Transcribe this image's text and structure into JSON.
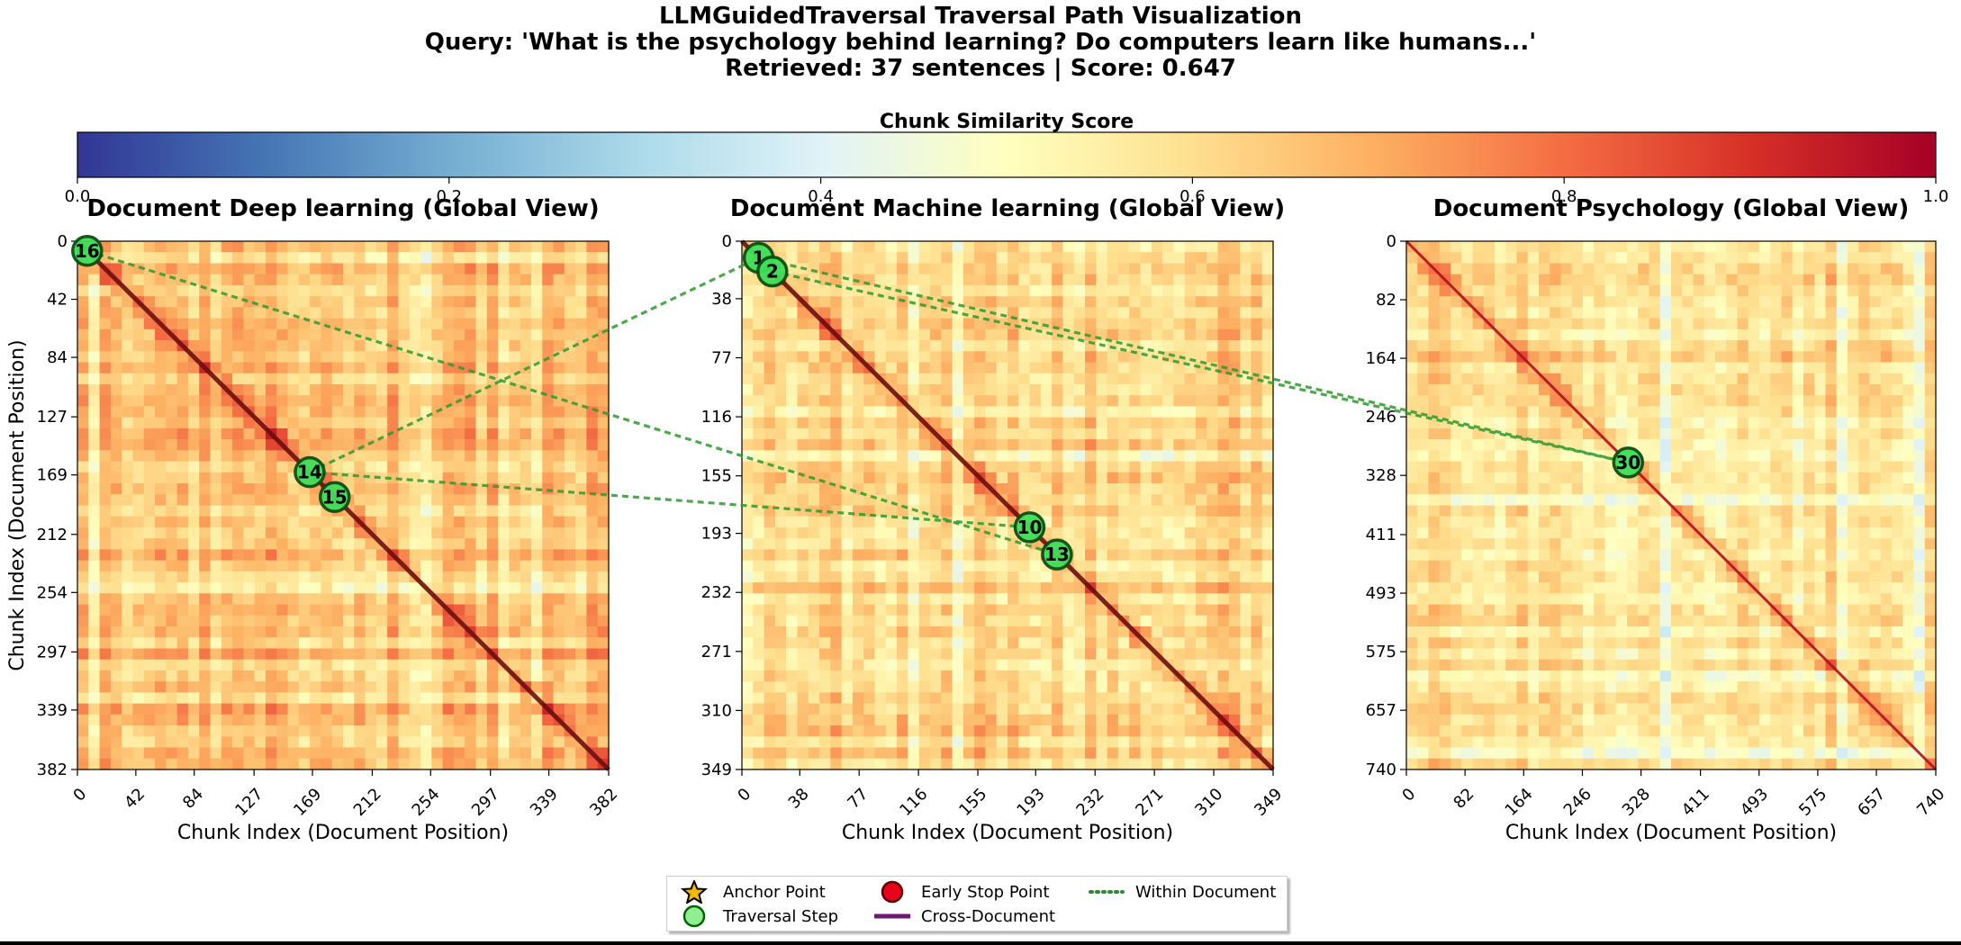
{
  "title": {
    "line1": "LLMGuidedTraversal Traversal Path Visualization",
    "line2": "Query: 'What is the psychology behind learning? Do computers learn like humans...'",
    "line3": "Retrieved: 37 sentences | Score: 0.647"
  },
  "colorbar": {
    "label": "Chunk Similarity Score",
    "colormap": "RdYlBu_r",
    "colors": [
      "#313695",
      "#4575b4",
      "#74add1",
      "#abd9e9",
      "#e0f3f8",
      "#ffffbf",
      "#fee090",
      "#fdae61",
      "#f46d43",
      "#d73027",
      "#a50026"
    ],
    "ticks": [
      "0.0",
      "0.2",
      "0.4",
      "0.6",
      "0.8",
      "1.0"
    ]
  },
  "legend": {
    "items": [
      {
        "label": "Anchor Point",
        "icon": "star-icon",
        "color": "#f5b800"
      },
      {
        "label": "Traversal Step",
        "icon": "circle-icon",
        "color": "#90ee90"
      },
      {
        "label": "Early Stop Point",
        "icon": "circle-icon",
        "color": "#e8001c"
      },
      {
        "label": "Cross-Document",
        "icon": "solid-line-icon",
        "color": "#6a1b6a"
      },
      {
        "label": "Within Document",
        "icon": "dotted-line-icon",
        "color": "#2e8b2e"
      }
    ]
  },
  "chart_data": [
    {
      "type": "heatmap",
      "title": "Document Deep learning (Global View)",
      "xlabel": "Chunk Index (Document Position)",
      "ylabel": "Chunk Index (Document Position)",
      "size": 382,
      "ticks": [
        0,
        42,
        84,
        127,
        169,
        212,
        254,
        297,
        339,
        382
      ],
      "points": [
        {
          "label": "16",
          "x": 7,
          "y": 7
        },
        {
          "label": "14",
          "x": 167,
          "y": 167
        },
        {
          "label": "15",
          "x": 185,
          "y": 185
        }
      ]
    },
    {
      "type": "heatmap",
      "title": "Document Machine learning (Global View)",
      "xlabel": "Chunk Index (Document Position)",
      "ylabel": "",
      "size": 349,
      "ticks": [
        0,
        38,
        77,
        116,
        155,
        193,
        232,
        271,
        310,
        349
      ],
      "points": [
        {
          "label": "1",
          "x": 11,
          "y": 11
        },
        {
          "label": "2",
          "x": 20,
          "y": 20
        },
        {
          "label": "10",
          "x": 189,
          "y": 189
        },
        {
          "label": "13",
          "x": 207,
          "y": 207
        }
      ]
    },
    {
      "type": "heatmap",
      "title": "Document Psychology (Global View)",
      "xlabel": "Chunk Index (Document Position)",
      "ylabel": "",
      "size": 740,
      "ticks": [
        0,
        82,
        164,
        246,
        328,
        411,
        493,
        575,
        657,
        740
      ],
      "points": [
        {
          "label": "30",
          "x": 310,
          "y": 310
        }
      ]
    }
  ],
  "paths": [
    {
      "from": [
        0,
        0
      ],
      "to": [
        1,
        3
      ]
    },
    {
      "from": [
        0,
        1
      ],
      "to": [
        1,
        0
      ]
    },
    {
      "from": [
        0,
        1
      ],
      "to": [
        1,
        2
      ]
    },
    {
      "from": [
        1,
        0
      ],
      "to": [
        2,
        0
      ]
    },
    {
      "from": [
        1,
        1
      ],
      "to": [
        2,
        0
      ]
    }
  ]
}
